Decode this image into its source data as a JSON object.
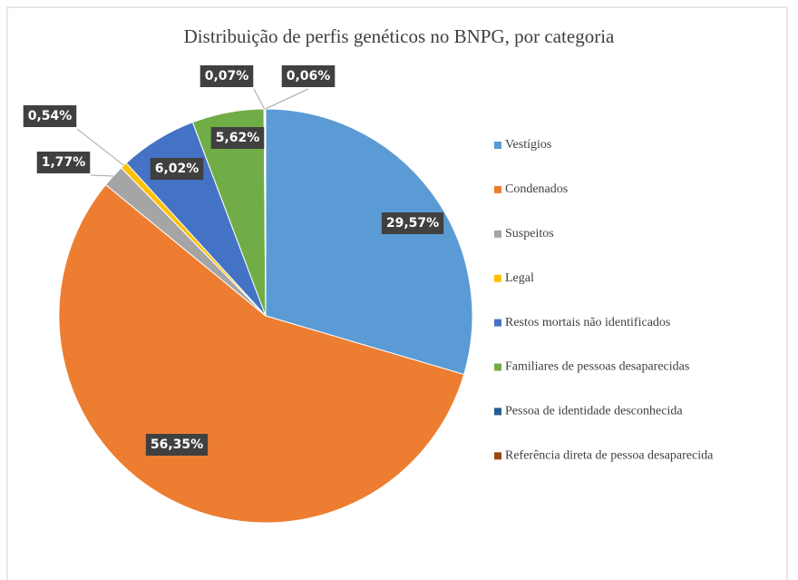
{
  "chart_data": {
    "type": "pie",
    "title": "Distribuição de perfis genéticos no BNPG, por categoria",
    "categories": [
      "Vestígios",
      "Condenados",
      "Suspeitos",
      "Legal",
      "Restos mortais não identificados",
      "Familiares de pessoas desaparecidas",
      "Pessoa de identidade desconhecida",
      "Referência direta de pessoa desaparecida"
    ],
    "values": [
      29.57,
      56.35,
      1.77,
      0.54,
      6.02,
      5.62,
      0.07,
      0.06
    ],
    "value_labels": [
      "29,57%",
      "56,35%",
      "1,77%",
      "0,54%",
      "6,02%",
      "5,62%",
      "0,07%",
      "0,06%"
    ],
    "colors": [
      "#5b9bd5",
      "#ed7d31",
      "#a5a5a5",
      "#ffc000",
      "#4472c4",
      "#70ad47",
      "#255e91",
      "#9e480e"
    ],
    "legend": "right"
  }
}
